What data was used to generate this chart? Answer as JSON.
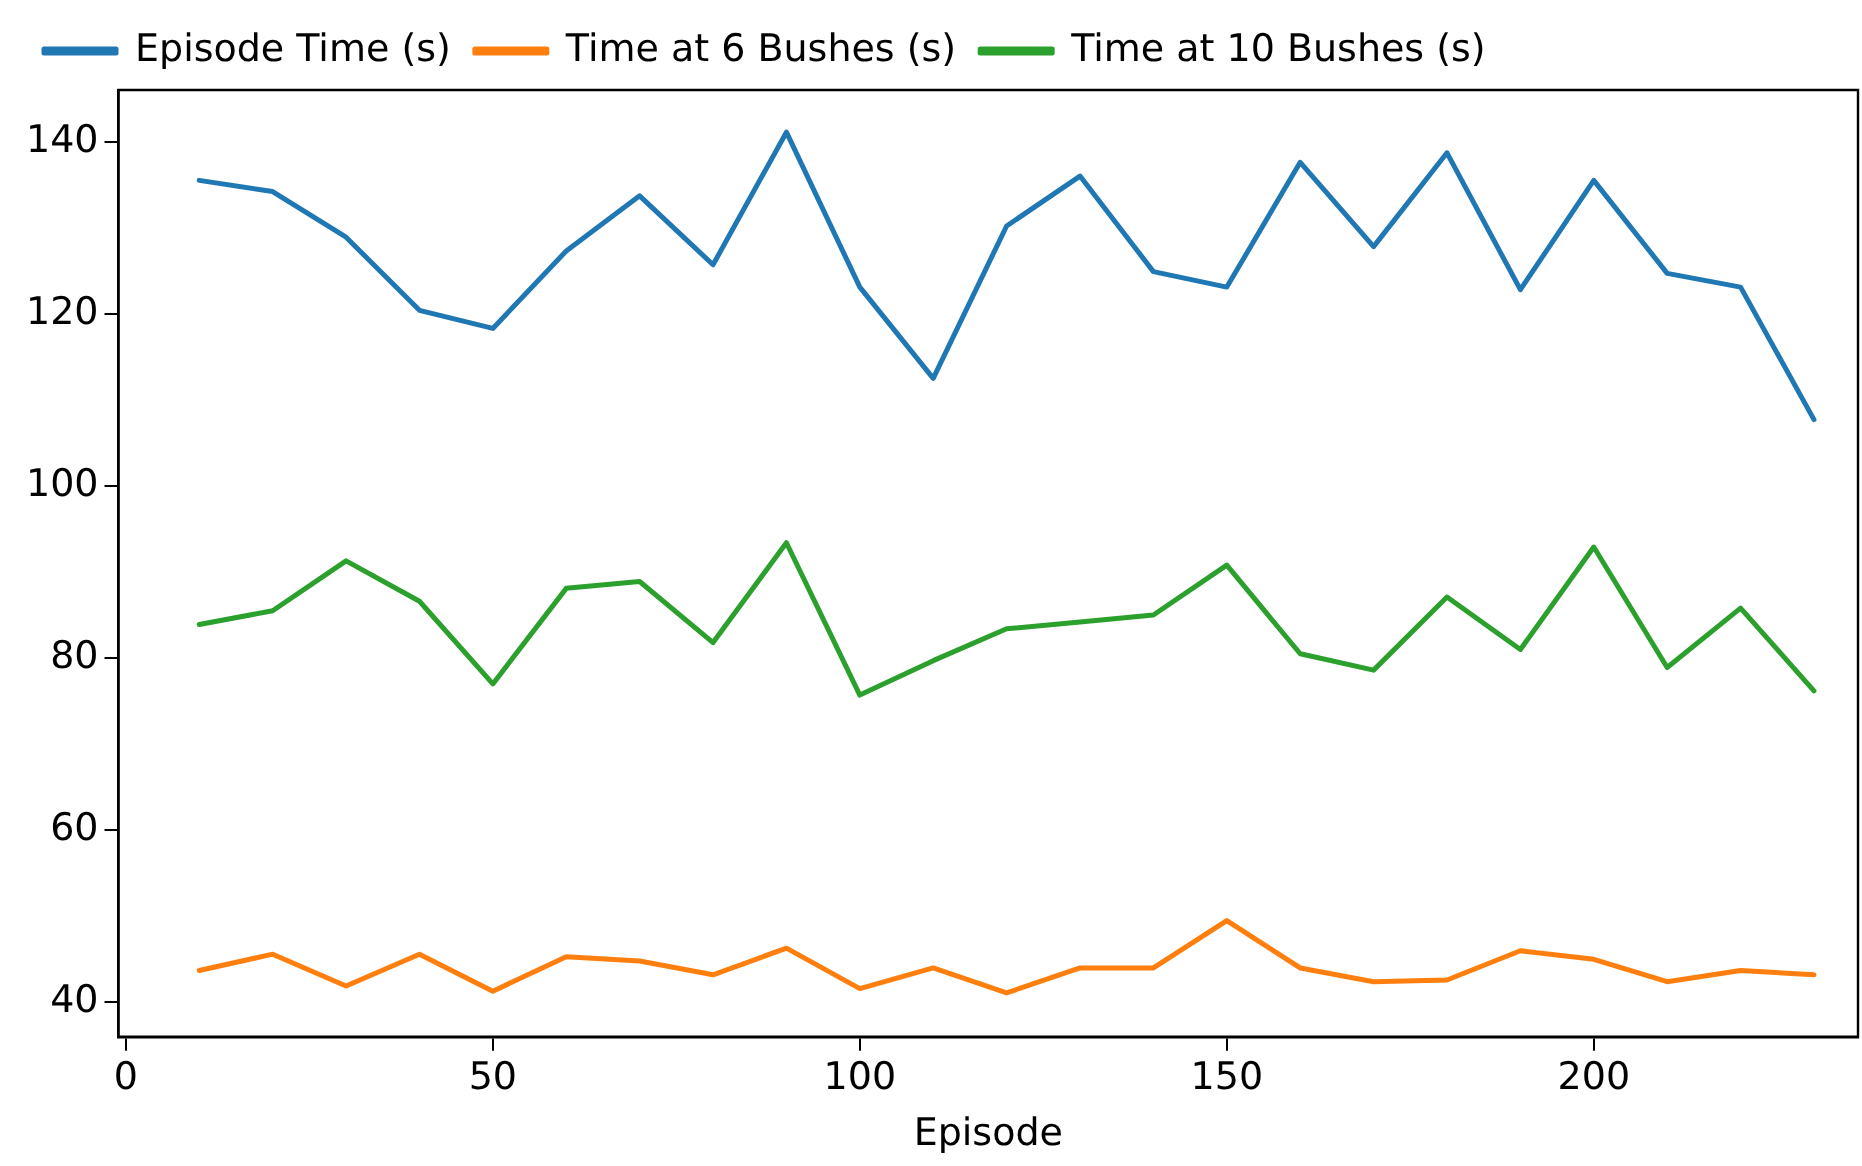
{
  "chart_data": {
    "type": "line",
    "xlabel": "Episode",
    "x": [
      10,
      20,
      30,
      40,
      50,
      60,
      70,
      80,
      90,
      100,
      110,
      120,
      130,
      140,
      150,
      160,
      170,
      180,
      190,
      200,
      210,
      220,
      230
    ],
    "series": [
      {
        "name": "Episode Time (s)",
        "color": "#1f77b4",
        "values": [
          135.5,
          134.2,
          128.9,
          120.4,
          118.3,
          127.3,
          133.7,
          125.7,
          141.1,
          123.1,
          112.5,
          130.2,
          136.0,
          124.9,
          123.1,
          137.6,
          127.8,
          138.7,
          122.8,
          135.5,
          124.7,
          123.1,
          107.7
        ]
      },
      {
        "name": "Time at 6 Bushes (s)",
        "color": "#ff7f0e",
        "values": [
          43.7,
          45.6,
          41.9,
          45.6,
          41.3,
          45.3,
          44.8,
          43.2,
          46.3,
          41.6,
          44.0,
          41.1,
          44.0,
          44.0,
          49.5,
          44.0,
          42.4,
          42.6,
          46.0,
          45.0,
          42.4,
          43.7,
          43.2
        ]
      },
      {
        "name": "Time at 10 Bushes (s)",
        "color": "#2ca02c",
        "values": [
          83.9,
          85.5,
          91.3,
          86.6,
          77.0,
          88.1,
          88.9,
          81.8,
          93.4,
          75.7,
          79.7,
          83.4,
          84.2,
          85.0,
          90.8,
          80.5,
          78.6,
          87.1,
          81.0,
          92.9,
          78.9,
          85.8,
          76.2
        ]
      }
    ],
    "xlim": [
      -1,
      236
    ],
    "xticks": [
      0,
      50,
      100,
      150,
      200
    ],
    "ylim": [
      36,
      146
    ],
    "yticks": [
      40,
      60,
      80,
      100,
      120,
      140
    ],
    "grid": false,
    "legend": "top",
    "marker": "none",
    "line_style": "solid"
  }
}
